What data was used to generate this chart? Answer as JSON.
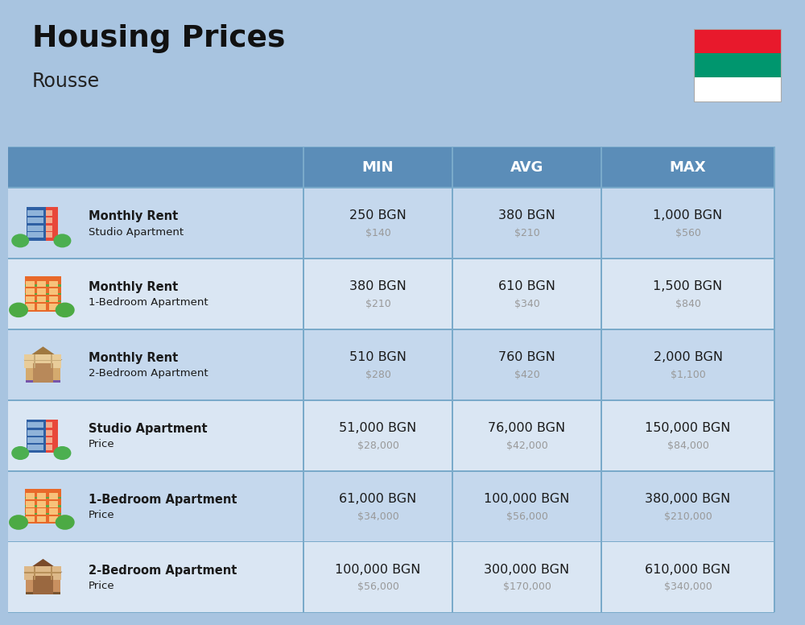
{
  "title": "Housing Prices",
  "subtitle": "Rousse",
  "background_color": "#a8c4e0",
  "header_bg_color": "#5b8db8",
  "header_text_color": "#ffffff",
  "row_bg_even": "#c5d8ed",
  "row_bg_odd": "#dae6f3",
  "col_header_labels": [
    "MIN",
    "AVG",
    "MAX"
  ],
  "rows": [
    {
      "bold_label": "Monthly Rent",
      "sub_label": "Studio Apartment",
      "min_bgn": "250 BGN",
      "min_usd": "$140",
      "avg_bgn": "380 BGN",
      "avg_usd": "$210",
      "max_bgn": "1,000 BGN",
      "max_usd": "$560",
      "icon_type": "studio_blue"
    },
    {
      "bold_label": "Monthly Rent",
      "sub_label": "1-Bedroom Apartment",
      "min_bgn": "380 BGN",
      "min_usd": "$210",
      "avg_bgn": "610 BGN",
      "avg_usd": "$340",
      "max_bgn": "1,500 BGN",
      "max_usd": "$840",
      "icon_type": "onebr_orange"
    },
    {
      "bold_label": "Monthly Rent",
      "sub_label": "2-Bedroom Apartment",
      "min_bgn": "510 BGN",
      "min_usd": "$280",
      "avg_bgn": "760 BGN",
      "avg_usd": "$420",
      "max_bgn": "2,000 BGN",
      "max_usd": "$1,100",
      "icon_type": "twobr_beige"
    },
    {
      "bold_label": "Studio Apartment",
      "sub_label": "Price",
      "min_bgn": "51,000 BGN",
      "min_usd": "$28,000",
      "avg_bgn": "76,000 BGN",
      "avg_usd": "$42,000",
      "max_bgn": "150,000 BGN",
      "max_usd": "$84,000",
      "icon_type": "studio_blue"
    },
    {
      "bold_label": "1-Bedroom Apartment",
      "sub_label": "Price",
      "min_bgn": "61,000 BGN",
      "min_usd": "$34,000",
      "avg_bgn": "100,000 BGN",
      "avg_usd": "$56,000",
      "max_bgn": "380,000 BGN",
      "max_usd": "$210,000",
      "icon_type": "onebr_orange"
    },
    {
      "bold_label": "2-Bedroom Apartment",
      "sub_label": "Price",
      "min_bgn": "100,000 BGN",
      "min_usd": "$56,000",
      "avg_bgn": "300,000 BGN",
      "avg_usd": "$170,000",
      "max_bgn": "610,000 BGN",
      "max_usd": "$340,000",
      "icon_type": "twobr_brown"
    }
  ],
  "cell_divider_color": "#7aaaca",
  "text_main_color": "#1a1a1a",
  "text_usd_color": "#999999",
  "flag_colors": [
    "#FFFFFF",
    "#00966E",
    "#E8192C"
  ]
}
